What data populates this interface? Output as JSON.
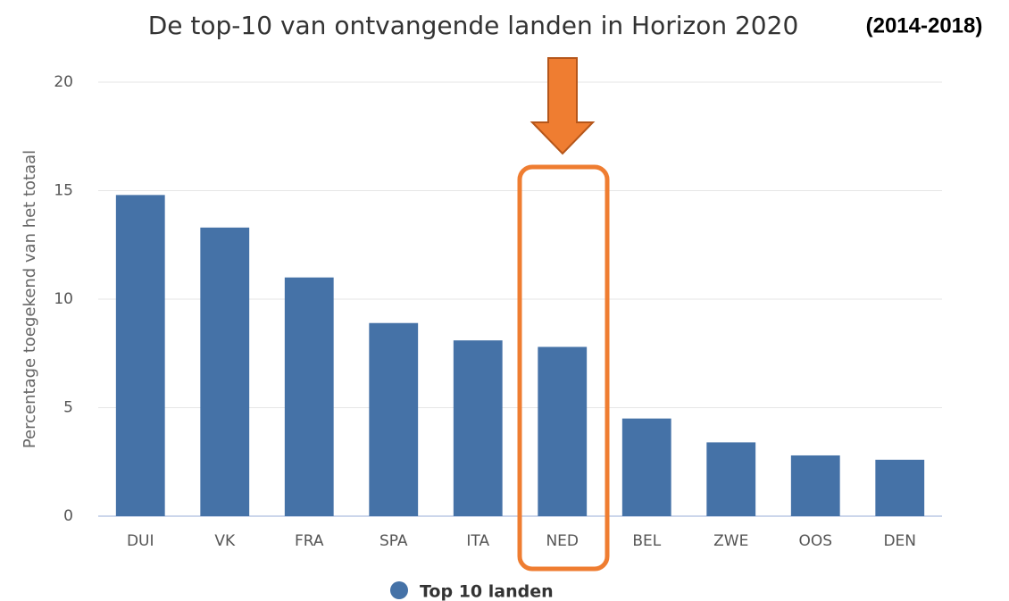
{
  "chart_data": {
    "type": "bar",
    "title": "De top-10 van ontvangende landen in Horizon 2020",
    "subtitle": "(2014-2018)",
    "y_label": "Percentage toegekend van het totaal",
    "categories": [
      "DUI",
      "VK",
      "FRA",
      "SPA",
      "ITA",
      "NED",
      "BEL",
      "ZWE",
      "OOS",
      "DEN"
    ],
    "series": [
      {
        "name": "Top 10 landen",
        "color": "#4572a7",
        "values": [
          14.8,
          13.3,
          11.0,
          8.9,
          8.1,
          7.8,
          4.5,
          3.4,
          2.8,
          2.6
        ]
      }
    ],
    "ylim": [
      0,
      20
    ],
    "yticks": [
      0,
      5,
      10,
      15,
      20
    ],
    "grid": true,
    "legend": "bottom"
  }
}
